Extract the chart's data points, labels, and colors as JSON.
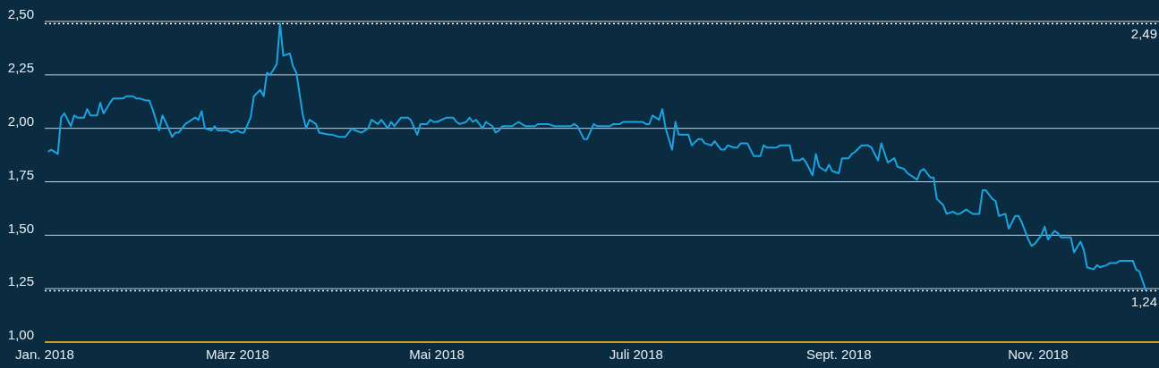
{
  "chart_data": {
    "type": "line",
    "marker": "none",
    "grid": "y",
    "xlim": [
      "2018-01-01",
      "2018-12-08"
    ],
    "xticks": [
      {
        "value": "2018-01-01",
        "label": "Jan. 2018"
      },
      {
        "value": "2018-03-01",
        "label": "März 2018"
      },
      {
        "value": "2018-05-01",
        "label": "Mai 2018"
      },
      {
        "value": "2018-07-01",
        "label": "Juli 2018"
      },
      {
        "value": "2018-09-01",
        "label": "Sept. 2018"
      },
      {
        "value": "2018-11-01",
        "label": "Nov. 2018"
      }
    ],
    "ylim": [
      1,
      2.5
    ],
    "yticks": [
      {
        "value": 1,
        "label": "1,00"
      },
      {
        "value": 1.25,
        "label": "1,25"
      },
      {
        "value": 1.5,
        "label": "1,50"
      },
      {
        "value": 1.75,
        "label": "1,75"
      },
      {
        "value": 2,
        "label": "2,00"
      },
      {
        "value": 2.25,
        "label": "2,25"
      },
      {
        "value": 2.5,
        "label": "2,50"
      }
    ],
    "ref_lines": [
      {
        "axis": "y",
        "value": 2.49,
        "label": "2,49",
        "color": "#ffffff",
        "line_style": "dotted"
      },
      {
        "axis": "y",
        "value": 1.24,
        "label": "1,24",
        "color": "#ffffff",
        "line_style": "dotted"
      }
    ],
    "x": [
      "2018-01-02",
      "2018-01-03",
      "2018-01-05",
      "2018-01-06",
      "2018-01-07",
      "2018-01-09",
      "2018-01-10",
      "2018-01-11",
      "2018-01-13",
      "2018-01-14",
      "2018-01-15",
      "2018-01-17",
      "2018-01-18",
      "2018-01-19",
      "2018-01-21",
      "2018-01-22",
      "2018-01-25",
      "2018-01-26",
      "2018-01-28",
      "2018-01-29",
      "2018-01-30",
      "2018-02-01",
      "2018-02-02",
      "2018-02-03",
      "2018-02-05",
      "2018-02-06",
      "2018-02-07",
      "2018-02-09",
      "2018-02-10",
      "2018-02-11",
      "2018-02-13",
      "2018-02-14",
      "2018-02-16",
      "2018-02-17",
      "2018-02-18",
      "2018-02-19",
      "2018-02-21",
      "2018-02-22",
      "2018-02-23",
      "2018-02-26",
      "2018-02-27",
      "2018-03-01",
      "2018-03-02",
      "2018-03-03",
      "2018-03-05",
      "2018-03-06",
      "2018-03-08",
      "2018-03-09",
      "2018-03-10",
      "2018-03-11",
      "2018-03-13",
      "2018-03-14",
      "2018-03-15",
      "2018-03-17",
      "2018-03-18",
      "2018-03-19",
      "2018-03-21",
      "2018-03-22",
      "2018-03-23",
      "2018-03-25",
      "2018-03-26",
      "2018-03-29",
      "2018-03-30",
      "2018-04-01",
      "2018-04-03",
      "2018-04-05",
      "2018-04-06",
      "2018-04-08",
      "2018-04-09",
      "2018-04-10",
      "2018-04-11",
      "2018-04-13",
      "2018-04-14",
      "2018-04-16",
      "2018-04-17",
      "2018-04-18",
      "2018-04-20",
      "2018-04-22",
      "2018-04-23",
      "2018-04-25",
      "2018-04-26",
      "2018-04-28",
      "2018-04-29",
      "2018-04-30",
      "2018-05-01",
      "2018-05-04",
      "2018-05-06",
      "2018-05-07",
      "2018-05-08",
      "2018-05-10",
      "2018-05-11",
      "2018-05-12",
      "2018-05-13",
      "2018-05-15",
      "2018-05-16",
      "2018-05-18",
      "2018-05-19",
      "2018-05-20",
      "2018-05-21",
      "2018-05-24",
      "2018-05-26",
      "2018-05-27",
      "2018-05-28",
      "2018-05-31",
      "2018-06-01",
      "2018-06-04",
      "2018-06-06",
      "2018-06-11",
      "2018-06-12",
      "2018-06-13",
      "2018-06-15",
      "2018-06-16",
      "2018-06-18",
      "2018-06-19",
      "2018-06-23",
      "2018-06-24",
      "2018-06-26",
      "2018-06-27",
      "2018-06-30",
      "2018-07-03",
      "2018-07-04",
      "2018-07-05",
      "2018-07-06",
      "2018-07-08",
      "2018-07-09",
      "2018-07-10",
      "2018-07-12",
      "2018-07-13",
      "2018-07-14",
      "2018-07-17",
      "2018-07-18",
      "2018-07-20",
      "2018-07-21",
      "2018-07-22",
      "2018-07-24",
      "2018-07-25",
      "2018-07-27",
      "2018-07-28",
      "2018-07-29",
      "2018-07-31",
      "2018-08-01",
      "2018-08-02",
      "2018-08-04",
      "2018-08-05",
      "2018-08-06",
      "2018-08-08",
      "2018-08-09",
      "2018-08-10",
      "2018-08-13",
      "2018-08-14",
      "2018-08-17",
      "2018-08-18",
      "2018-08-20",
      "2018-08-21",
      "2018-08-22",
      "2018-08-24",
      "2018-08-25",
      "2018-08-26",
      "2018-08-28",
      "2018-08-29",
      "2018-08-30",
      "2018-09-01",
      "2018-09-02",
      "2018-09-04",
      "2018-09-05",
      "2018-09-06",
      "2018-09-08",
      "2018-09-10",
      "2018-09-11",
      "2018-09-13",
      "2018-09-14",
      "2018-09-16",
      "2018-09-17",
      "2018-09-18",
      "2018-09-19",
      "2018-09-21",
      "2018-09-22",
      "2018-09-24",
      "2018-09-25",
      "2018-09-26",
      "2018-09-27",
      "2018-09-29",
      "2018-09-30",
      "2018-10-01",
      "2018-10-03",
      "2018-10-04",
      "2018-10-06",
      "2018-10-07",
      "2018-10-08",
      "2018-10-10",
      "2018-10-11",
      "2018-10-12",
      "2018-10-14",
      "2018-10-15",
      "2018-10-16",
      "2018-10-18",
      "2018-10-19",
      "2018-10-20",
      "2018-10-22",
      "2018-10-23",
      "2018-10-25",
      "2018-10-26",
      "2018-10-27",
      "2018-10-29",
      "2018-10-30",
      "2018-10-31",
      "2018-11-02",
      "2018-11-03",
      "2018-11-04",
      "2018-11-06",
      "2018-11-07",
      "2018-11-08",
      "2018-11-11",
      "2018-11-12",
      "2018-11-14",
      "2018-11-15",
      "2018-11-16",
      "2018-11-18",
      "2018-11-19",
      "2018-11-20",
      "2018-11-22",
      "2018-11-23",
      "2018-11-25",
      "2018-11-26",
      "2018-11-27",
      "2018-11-30",
      "2018-12-01",
      "2018-12-02",
      "2018-12-04"
    ],
    "series": [
      {
        "color": "#1aa3e0",
        "values": [
          1.89,
          1.9,
          1.88,
          2.05,
          2.07,
          2.01,
          2.06,
          2.05,
          2.05,
          2.09,
          2.06,
          2.06,
          2.12,
          2.07,
          2.12,
          2.14,
          2.14,
          2.15,
          2.15,
          2.14,
          2.14,
          2.13,
          2.13,
          2.09,
          1.99,
          2.06,
          2.03,
          1.96,
          1.98,
          1.98,
          2.02,
          2.03,
          2.05,
          2.04,
          2.08,
          2.0,
          1.99,
          2.01,
          1.99,
          1.99,
          1.98,
          1.99,
          1.98,
          1.98,
          2.05,
          2.15,
          2.18,
          2.15,
          2.26,
          2.25,
          2.3,
          2.49,
          2.34,
          2.35,
          2.29,
          2.26,
          2.06,
          2.0,
          2.04,
          2.02,
          1.98,
          1.97,
          1.97,
          1.96,
          1.96,
          2.0,
          1.99,
          1.98,
          1.99,
          2.0,
          2.04,
          2.02,
          2.04,
          2.0,
          2.03,
          2.01,
          2.05,
          2.05,
          2.04,
          1.97,
          2.02,
          2.02,
          2.04,
          2.03,
          2.03,
          2.05,
          2.05,
          2.03,
          2.02,
          2.03,
          2.05,
          2.03,
          2.04,
          2.0,
          2.03,
          2.01,
          1.98,
          1.99,
          2.01,
          2.01,
          2.03,
          2.02,
          2.01,
          2.01,
          2.02,
          2.02,
          2.01,
          2.01,
          2.02,
          2.01,
          1.95,
          1.95,
          2.02,
          2.01,
          2.01,
          2.02,
          2.02,
          2.03,
          2.03,
          2.03,
          2.02,
          2.02,
          2.06,
          2.04,
          2.09,
          2.0,
          1.9,
          2.03,
          1.97,
          1.97,
          1.92,
          1.95,
          1.95,
          1.93,
          1.92,
          1.94,
          1.9,
          1.9,
          1.92,
          1.91,
          1.91,
          1.93,
          1.93,
          1.9,
          1.87,
          1.87,
          1.92,
          1.91,
          1.91,
          1.92,
          1.92,
          1.85,
          1.85,
          1.86,
          1.84,
          1.78,
          1.88,
          1.82,
          1.8,
          1.83,
          1.8,
          1.79,
          1.86,
          1.86,
          1.88,
          1.89,
          1.92,
          1.92,
          1.91,
          1.85,
          1.93,
          1.84,
          1.85,
          1.86,
          1.82,
          1.81,
          1.79,
          1.77,
          1.76,
          1.8,
          1.81,
          1.77,
          1.77,
          1.67,
          1.64,
          1.6,
          1.61,
          1.6,
          1.6,
          1.62,
          1.61,
          1.6,
          1.6,
          1.71,
          1.71,
          1.67,
          1.66,
          1.59,
          1.6,
          1.53,
          1.59,
          1.59,
          1.56,
          1.48,
          1.45,
          1.46,
          1.5,
          1.54,
          1.48,
          1.52,
          1.51,
          1.49,
          1.49,
          1.42,
          1.47,
          1.43,
          1.35,
          1.34,
          1.36,
          1.35,
          1.36,
          1.37,
          1.37,
          1.38,
          1.38,
          1.38,
          1.34,
          1.33,
          1.24
        ]
      }
    ]
  }
}
